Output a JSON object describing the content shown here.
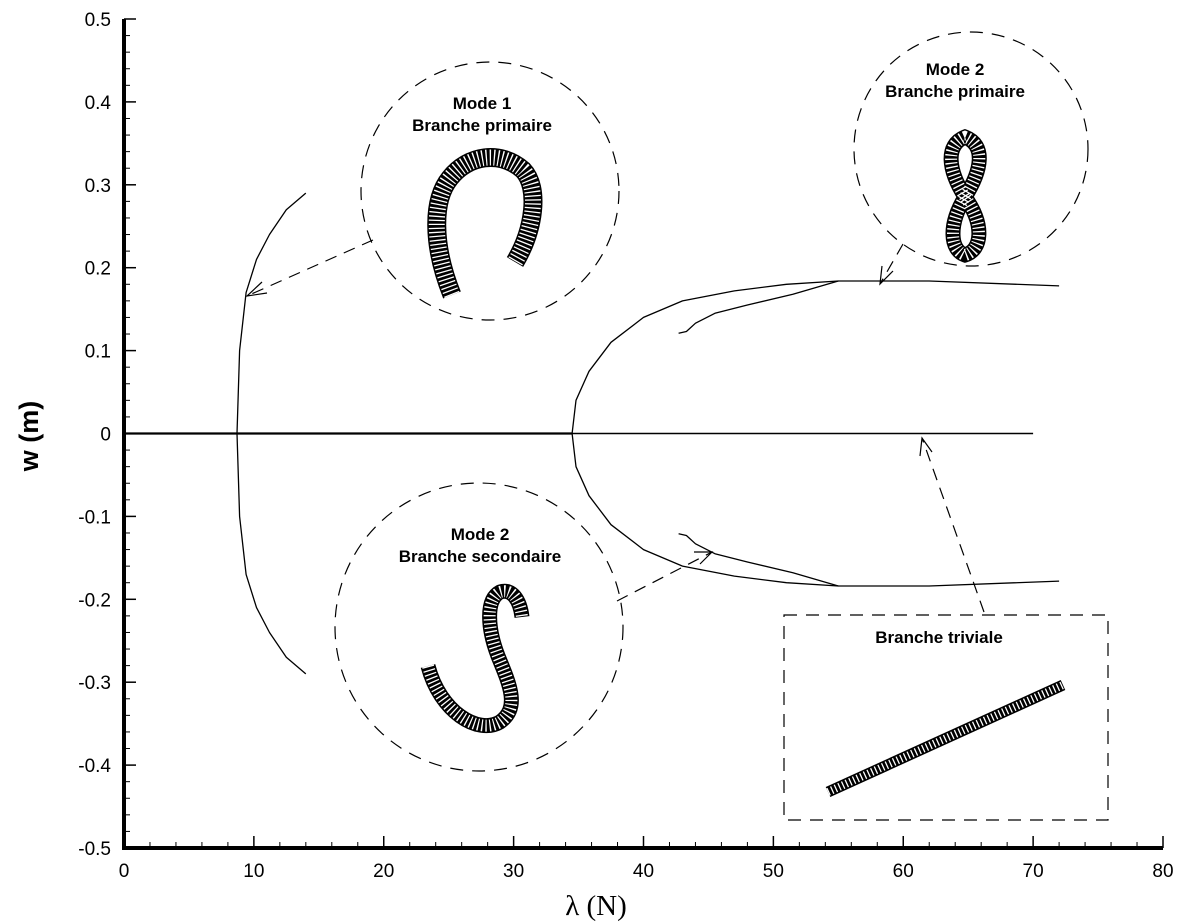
{
  "chart_data": {
    "type": "line",
    "xlabel": "λ (N)",
    "ylabel": "w (m)",
    "xlim": [
      0,
      80
    ],
    "ylim": [
      -0.5,
      0.5
    ],
    "x_ticks": [
      0,
      10,
      20,
      30,
      40,
      50,
      60,
      70,
      80
    ],
    "x_tick_labels": [
      "0",
      "10",
      "20",
      "30",
      "40",
      "50",
      "60",
      "70",
      "80"
    ],
    "y_ticks": [
      0.5,
      0.4,
      0.3,
      0.2,
      0.1,
      0,
      -0.1,
      -0.2,
      -0.3,
      -0.4,
      -0.5
    ],
    "y_tick_labels": [
      "0.5",
      "0.4",
      "0.3",
      "0.2",
      "0.1",
      "0",
      "-0.1",
      "-0.2",
      "-0.3",
      "-0.4",
      "-0.5"
    ],
    "grid": false,
    "series": [
      {
        "id": "trivial",
        "x": [
          0,
          70
        ],
        "y": [
          0,
          0
        ]
      },
      {
        "id": "mode1-upper",
        "x": [
          8.7,
          8.9,
          9.4,
          10.2,
          11.2,
          12.5,
          14.0
        ],
        "y": [
          0,
          0.1,
          0.17,
          0.21,
          0.24,
          0.27,
          0.29
        ]
      },
      {
        "id": "mode1-lower",
        "x": [
          8.7,
          8.9,
          9.4,
          10.2,
          11.2,
          12.5,
          14.0
        ],
        "y": [
          0,
          -0.1,
          -0.17,
          -0.21,
          -0.24,
          -0.27,
          -0.29
        ]
      },
      {
        "id": "mode2-primary-upper",
        "x": [
          34.5,
          34.8,
          35.8,
          37.5,
          40.0,
          43.0,
          47.0,
          51.0,
          55.0,
          62.0,
          72.0
        ],
        "y": [
          0,
          0.04,
          0.075,
          0.11,
          0.14,
          0.16,
          0.172,
          0.18,
          0.184,
          0.184,
          0.178
        ]
      },
      {
        "id": "mode2-primary-lower",
        "x": [
          34.5,
          34.8,
          35.8,
          37.5,
          40.0,
          43.0,
          47.0,
          51.0,
          55.0,
          62.0,
          72.0
        ],
        "y": [
          0,
          -0.04,
          -0.075,
          -0.11,
          -0.14,
          -0.16,
          -0.172,
          -0.18,
          -0.184,
          -0.184,
          -0.178
        ]
      },
      {
        "id": "mode2-secondary-upper",
        "x": [
          42.7,
          43.3,
          44.0,
          45.5,
          48.0,
          51.5,
          55.0
        ],
        "y": [
          0.121,
          0.123,
          0.133,
          0.145,
          0.155,
          0.168,
          0.184
        ]
      },
      {
        "id": "mode2-secondary-lower",
        "x": [
          42.7,
          43.3,
          44.0,
          45.5,
          48.0,
          51.5,
          55.0
        ],
        "y": [
          -0.121,
          -0.123,
          -0.133,
          -0.145,
          -0.155,
          -0.168,
          -0.184
        ]
      }
    ],
    "annotations": [
      {
        "id": "mode1-primary",
        "lines": [
          "Mode 1",
          "Branche primaire"
        ]
      },
      {
        "id": "mode2-primary",
        "lines": [
          "Mode 2",
          "Branche primaire"
        ]
      },
      {
        "id": "mode2-secondary",
        "lines": [
          "Mode 2",
          "Branche secondaire"
        ]
      },
      {
        "id": "trivial",
        "lines": [
          "Branche triviale"
        ]
      }
    ]
  }
}
